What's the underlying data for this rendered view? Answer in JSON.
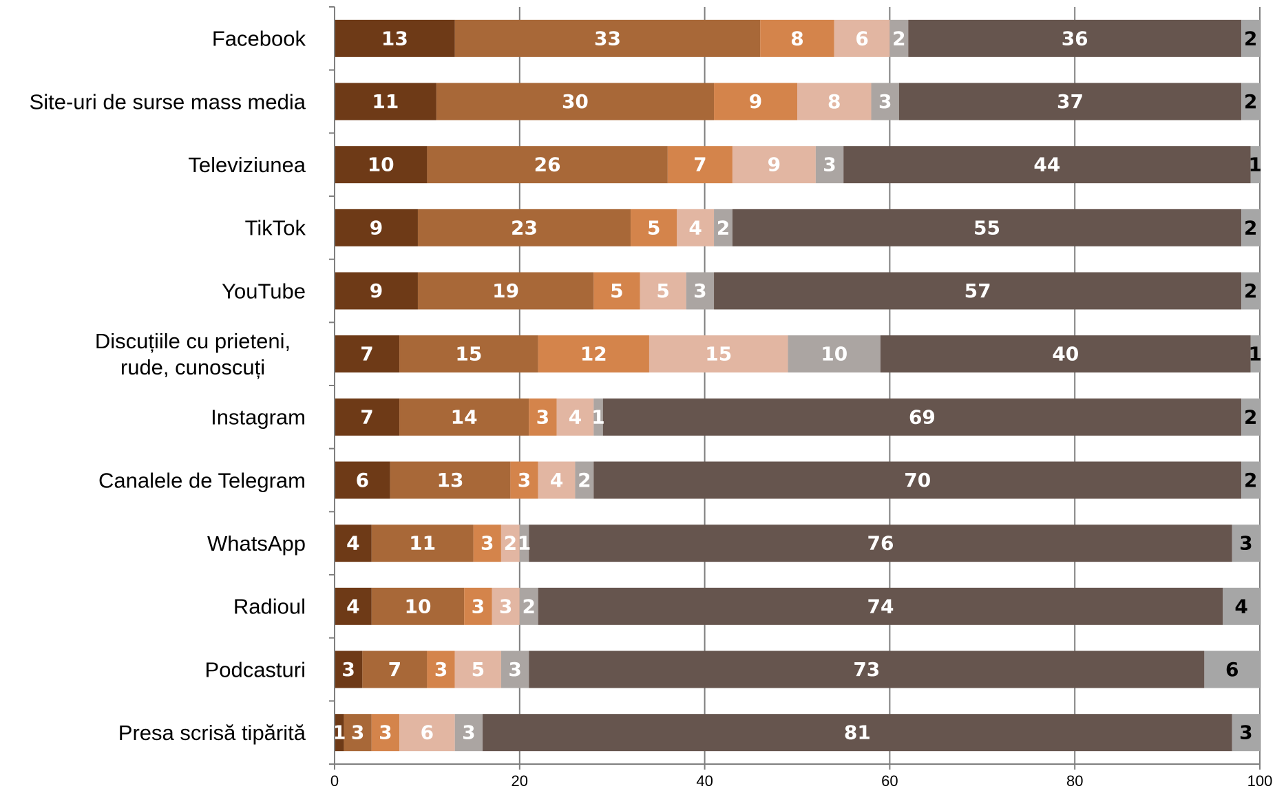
{
  "chart_data": {
    "type": "bar",
    "orientation": "horizontal",
    "stacked": true,
    "categories": [
      "Facebook",
      "Site-uri de surse mass media",
      "Televiziunea",
      "TikTok",
      "YouTube",
      "Discuțiile cu prieteni, rude, cunoscuți",
      "Instagram",
      "Canalele de Telegram",
      "WhatsApp",
      "Radioul",
      "Podcasturi",
      "Presa scrisă tipărită"
    ],
    "category_lines": [
      [
        "Facebook"
      ],
      [
        "Site-uri de surse mass media"
      ],
      [
        "Televiziunea"
      ],
      [
        "TikTok"
      ],
      [
        "YouTube"
      ],
      [
        "Discuțiile cu prieteni,",
        "rude, cunoscuți"
      ],
      [
        "Instagram"
      ],
      [
        "Canalele de Telegram"
      ],
      [
        "WhatsApp"
      ],
      [
        "Radioul"
      ],
      [
        "Podcasturi"
      ],
      [
        "Presa scrisă tipărită"
      ]
    ],
    "series": [
      {
        "color": "#6e3a17",
        "label_color": "#ffffff",
        "values": [
          13,
          11,
          10,
          9,
          9,
          7,
          7,
          6,
          4,
          4,
          3,
          1
        ]
      },
      {
        "color": "#a86838",
        "label_color": "#ffffff",
        "values": [
          33,
          30,
          26,
          23,
          19,
          15,
          14,
          13,
          11,
          10,
          7,
          3
        ]
      },
      {
        "color": "#d4844b",
        "label_color": "#ffffff",
        "values": [
          8,
          9,
          7,
          5,
          5,
          12,
          3,
          3,
          3,
          3,
          3,
          3
        ]
      },
      {
        "color": "#e2b6a2",
        "label_color": "#ffffff",
        "values": [
          6,
          8,
          9,
          4,
          5,
          15,
          4,
          4,
          2,
          3,
          5,
          6
        ]
      },
      {
        "color": "#aba5a2",
        "label_color": "#ffffff",
        "values": [
          2,
          3,
          3,
          2,
          3,
          10,
          1,
          2,
          1,
          2,
          3,
          3
        ]
      },
      {
        "color": "#66554e",
        "label_color": "#ffffff",
        "values": [
          36,
          37,
          44,
          55,
          57,
          40,
          69,
          70,
          76,
          74,
          73,
          81
        ]
      },
      {
        "color": "#a6a6a6",
        "label_color": "#000000",
        "values": [
          2,
          2,
          1,
          2,
          2,
          1,
          2,
          2,
          3,
          4,
          6,
          3
        ]
      }
    ],
    "bar_totals": [
      100,
      100,
      100,
      100,
      100,
      100,
      100,
      100,
      100,
      100,
      100,
      100
    ],
    "xlim": [
      0,
      100
    ],
    "xticks": [
      0,
      20,
      40,
      60,
      80,
      100
    ],
    "title": "",
    "xlabel": "",
    "ylabel": "",
    "grid": "vertical",
    "legend": "none"
  }
}
